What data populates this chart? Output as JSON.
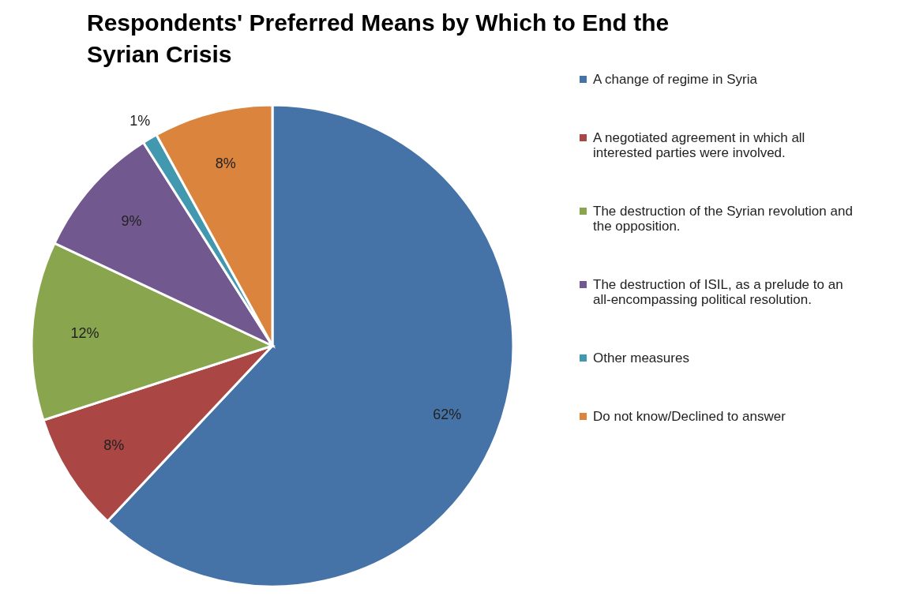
{
  "chart_data": {
    "type": "pie",
    "title": "Respondents' Preferred Means by Which to End the Syrian Crisis",
    "categories": [
      "A change of regime in Syria",
      "A negotiated agreement in which all interested parties were involved.",
      "The destruction of the Syrian revolution and the opposition.",
      "The destruction of ISIL, as a prelude to an all-encompassing political resolution.",
      "Other measures",
      "Do not know/Declined to answer"
    ],
    "values": [
      62,
      8,
      12,
      9,
      1,
      8
    ],
    "colors": [
      "#4572a7",
      "#aa4643",
      "#89a54e",
      "#71588f",
      "#4198af",
      "#db843d"
    ],
    "value_labels": [
      "62%",
      "8%",
      "12%",
      "9%",
      "1%",
      "8%"
    ],
    "legend": "right"
  }
}
